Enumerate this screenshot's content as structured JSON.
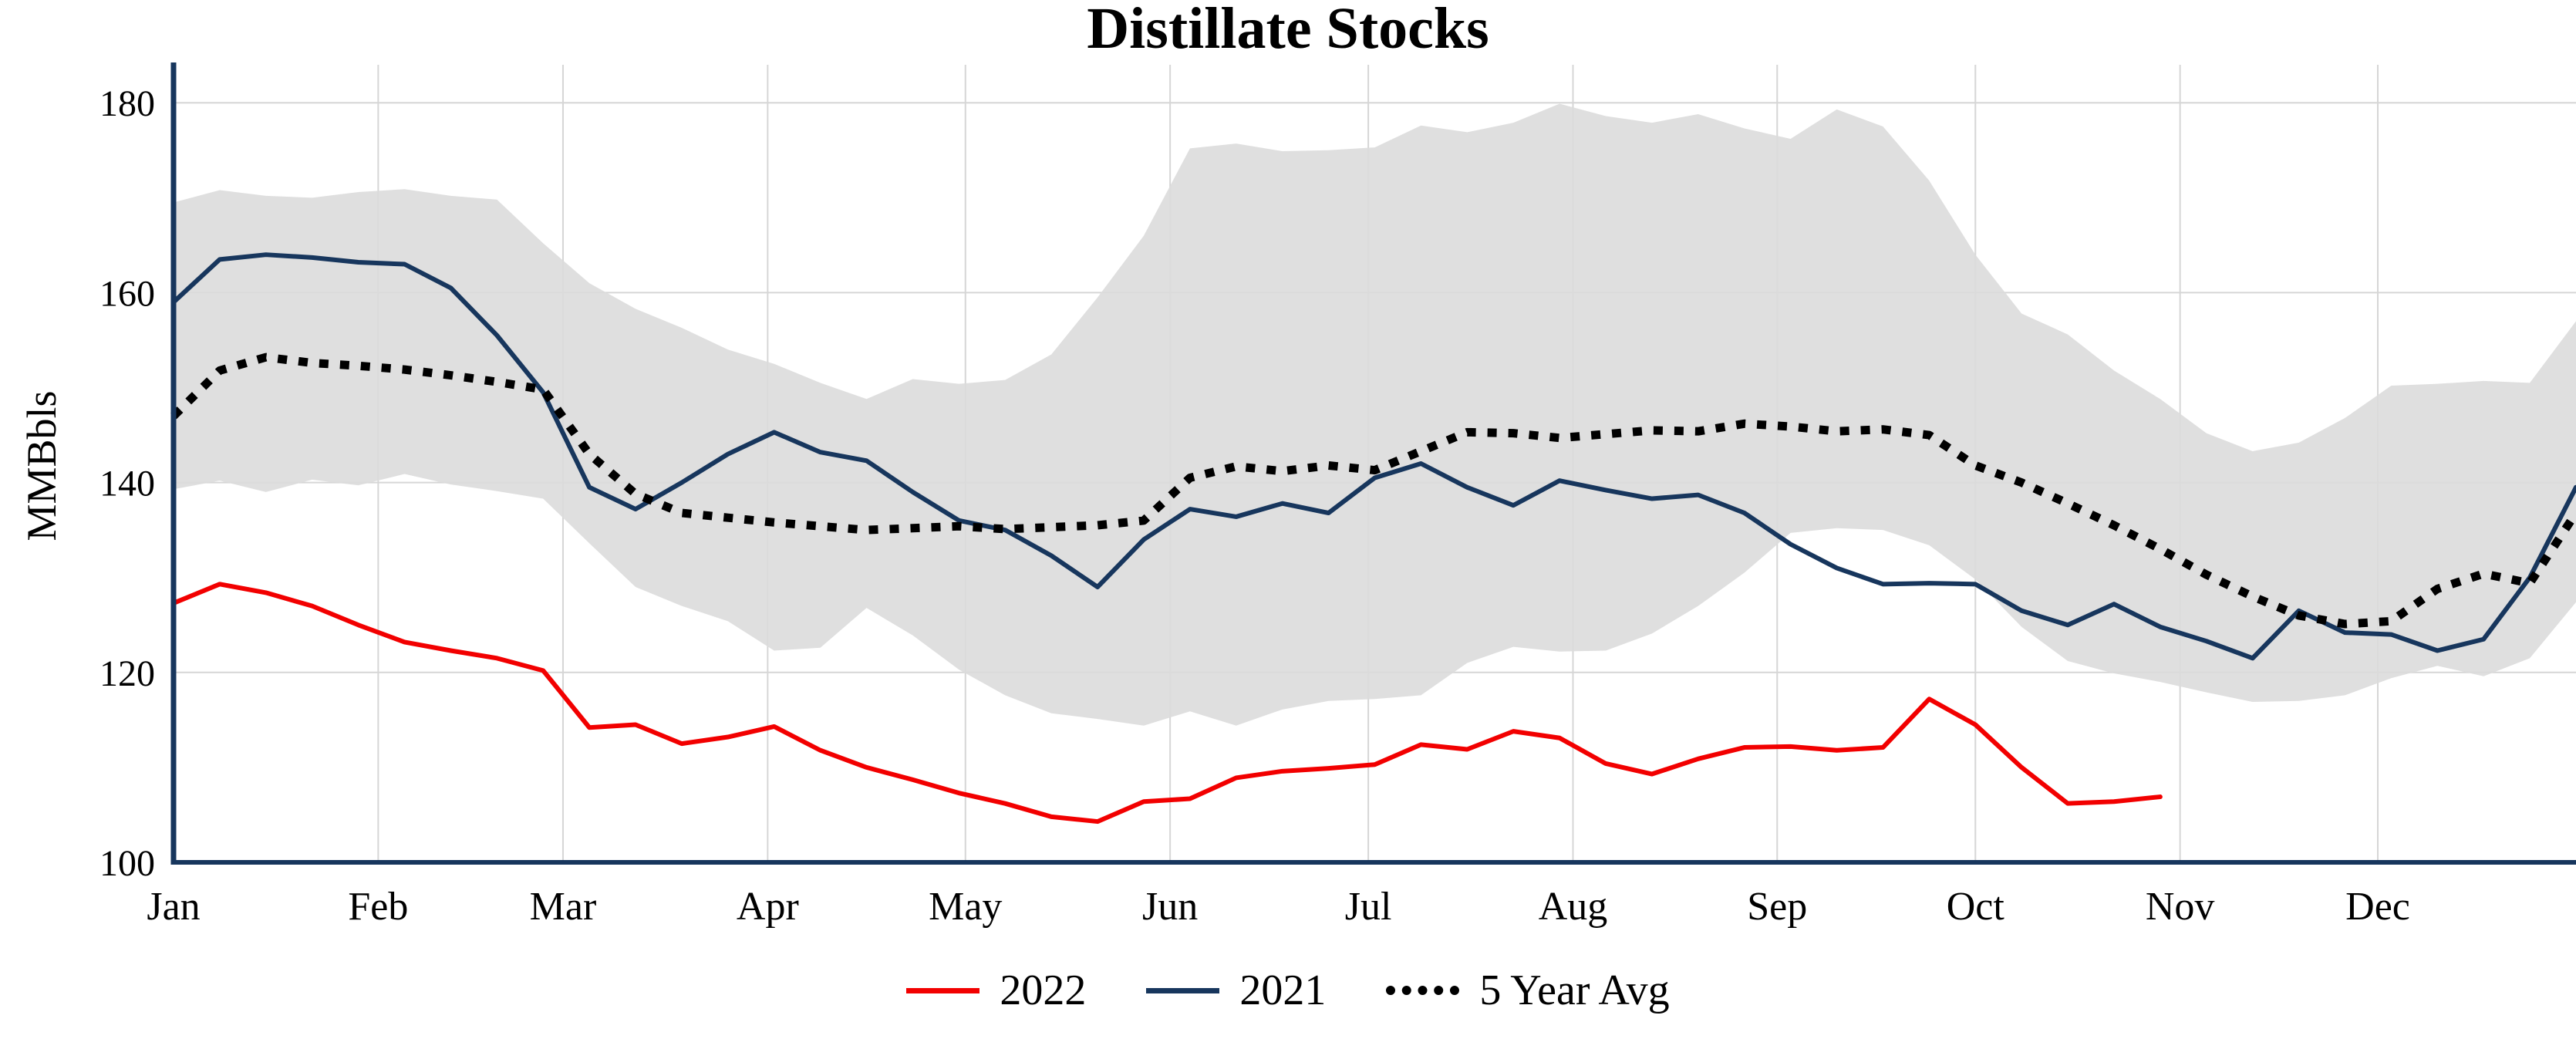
{
  "colors": {
    "axis": "#17365D",
    "grid": "#D6D6D6",
    "band": "#DBDBDB",
    "series_2022": "#F20000",
    "series_2021": "#17365D",
    "series_avg": "#000000"
  },
  "legend": [
    {
      "label": "2022",
      "color": "#F20000",
      "style": "solid"
    },
    {
      "label": "2021",
      "color": "#17365D",
      "style": "solid"
    },
    {
      "label": "5 Year Avg",
      "color": "#000000",
      "style": "dotted"
    }
  ],
  "chart_data": {
    "type": "line",
    "title": "Distillate Stocks",
    "ylabel": "MMBbls",
    "xlabel": "",
    "grid": true,
    "legend_position": "bottom",
    "ylim": [
      100,
      184
    ],
    "yticks": [
      100,
      120,
      140,
      160,
      180
    ],
    "x_unit": "week_of_year",
    "xlim": [
      0,
      52
    ],
    "months": [
      "Jan",
      "Feb",
      "Mar",
      "Apr",
      "May",
      "Jun",
      "Jul",
      "Aug",
      "Sep",
      "Oct",
      "Nov",
      "Dec"
    ],
    "month_start_weeks": [
      0,
      4.43,
      8.43,
      12.86,
      17.14,
      21.57,
      25.86,
      30.29,
      34.71,
      39.0,
      43.43,
      47.71
    ],
    "band": {
      "name": "5 Year Range",
      "upper": [
        169.5,
        170.8,
        170.2,
        170.0,
        170.6,
        170.9,
        170.2,
        169.8,
        165.2,
        161.0,
        158.3,
        156.3,
        154.0,
        152.5,
        150.5,
        148.8,
        150.9,
        150.4,
        150.8,
        153.5,
        159.5,
        166.0,
        175.2,
        175.7,
        174.9,
        175.0,
        175.3,
        177.6,
        176.9,
        177.9,
        179.9,
        178.6,
        177.9,
        178.8,
        177.3,
        176.2,
        179.3,
        177.5,
        171.8,
        164.0,
        157.8,
        155.6,
        151.8,
        148.8,
        145.2,
        143.3,
        144.2,
        146.8,
        150.2,
        150.4,
        150.7,
        150.5,
        157.0
      ],
      "lower": [
        139.3,
        140.2,
        139.0,
        140.3,
        139.7,
        140.9,
        139.8,
        139.1,
        138.3,
        133.6,
        129.0,
        127.0,
        125.4,
        122.3,
        122.6,
        126.8,
        123.9,
        120.3,
        117.6,
        115.7,
        115.1,
        114.4,
        115.9,
        114.4,
        116.1,
        117.0,
        117.2,
        117.6,
        121.0,
        122.7,
        122.2,
        122.3,
        124.1,
        127.0,
        130.5,
        134.7,
        135.2,
        135.0,
        133.4,
        129.8,
        124.8,
        121.2,
        119.9,
        119.0,
        117.9,
        116.9,
        117.0,
        117.6,
        119.4,
        120.7,
        119.6,
        121.5,
        127.4
      ]
    },
    "series": [
      {
        "id": "2021",
        "name": "2021",
        "color": "#17365D",
        "width": 6,
        "dash": null,
        "values": [
          159.0,
          163.5,
          164.0,
          163.7,
          163.2,
          163.0,
          160.5,
          155.5,
          149.5,
          139.5,
          137.2,
          140.0,
          143.0,
          145.3,
          143.2,
          142.3,
          139.0,
          136.0,
          135.0,
          132.3,
          129.0,
          134.0,
          137.2,
          136.4,
          137.8,
          136.8,
          140.5,
          142.0,
          139.5,
          137.6,
          140.2,
          139.2,
          138.3,
          138.7,
          136.8,
          133.5,
          131.0,
          129.3,
          129.4,
          129.3,
          126.5,
          125.0,
          127.2,
          124.8,
          123.3,
          121.5,
          126.5,
          124.2,
          124.0,
          122.3,
          123.5,
          130.0,
          139.5
        ]
      },
      {
        "id": "2022",
        "name": "2022",
        "color": "#F20000",
        "width": 6,
        "dash": null,
        "values": [
          127.3,
          129.3,
          128.4,
          127.0,
          125.0,
          123.2,
          122.3,
          121.5,
          120.2,
          114.2,
          114.5,
          112.5,
          113.2,
          114.3,
          111.8,
          110.0,
          108.7,
          107.3,
          106.2,
          104.8,
          104.3,
          106.4,
          106.7,
          108.9,
          109.6,
          109.9,
          110.3,
          112.4,
          111.9,
          113.8,
          113.1,
          110.4,
          109.3,
          110.9,
          112.1,
          112.2,
          111.8,
          112.1,
          117.2,
          114.5,
          110.0,
          106.2,
          106.4,
          106.9
        ]
      },
      {
        "id": "5-year-avg",
        "name": "5 Year Avg",
        "color": "#000000",
        "width": 11,
        "dash": "12 15",
        "values": [
          147.0,
          151.8,
          153.2,
          152.6,
          152.3,
          151.9,
          151.3,
          150.6,
          149.8,
          143.0,
          138.8,
          136.8,
          136.3,
          135.8,
          135.4,
          135.0,
          135.2,
          135.4,
          135.1,
          135.3,
          135.5,
          136.0,
          140.5,
          141.7,
          141.2,
          141.8,
          141.3,
          143.3,
          145.3,
          145.2,
          144.7,
          145.1,
          145.5,
          145.4,
          146.2,
          145.9,
          145.4,
          145.6,
          145.0,
          141.8,
          140.0,
          137.8,
          135.5,
          133.0,
          130.3,
          128.0,
          126.0,
          125.1,
          125.4,
          128.8,
          130.4,
          129.4,
          136.8
        ]
      }
    ]
  }
}
